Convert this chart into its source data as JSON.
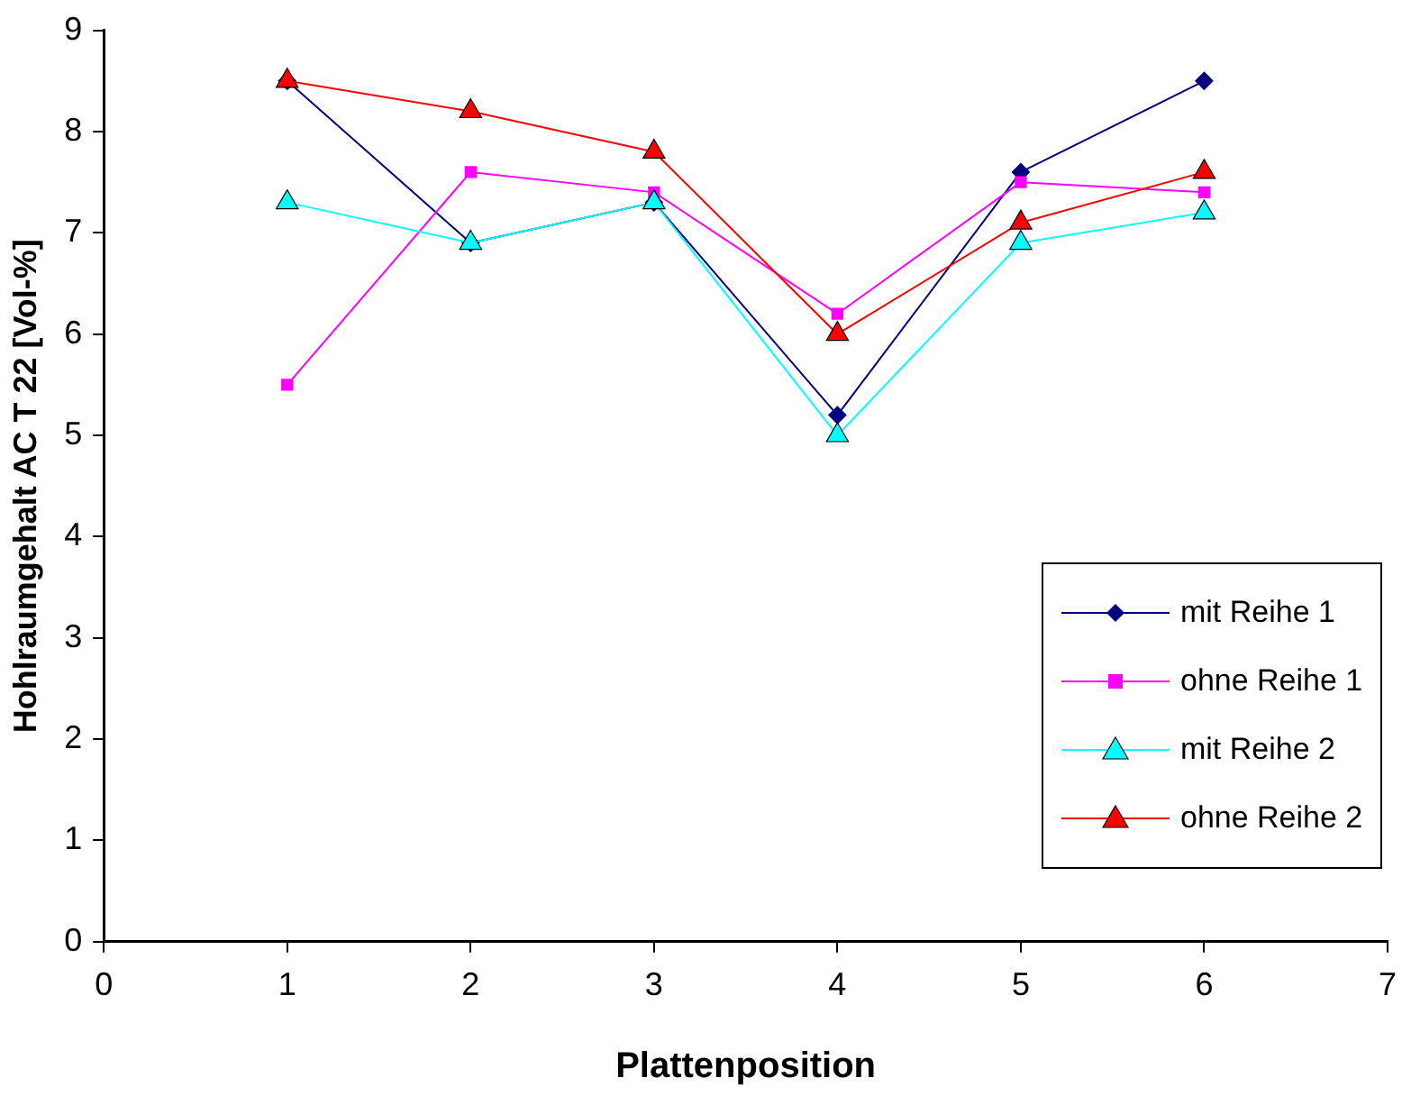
{
  "chart_data": {
    "type": "line",
    "xlabel": "Plattenposition",
    "ylabel": "Hohlraumgehalt AC T 22 [Vol-%]",
    "x": [
      1,
      2,
      3,
      4,
      5,
      6
    ],
    "xlim": [
      0,
      7
    ],
    "xticks": [
      0,
      1,
      2,
      3,
      4,
      5,
      6,
      7
    ],
    "ylim": [
      0,
      9
    ],
    "yticks": [
      0,
      1,
      2,
      3,
      4,
      5,
      6,
      7,
      8,
      9
    ],
    "grid": false,
    "legend": "bottom right",
    "line_style": "solid",
    "series": [
      {
        "name": "mit Reihe 1",
        "color": "#000080",
        "marker": "diamond",
        "values": [
          8.5,
          6.9,
          7.3,
          5.2,
          7.6,
          8.5
        ]
      },
      {
        "name": "ohne Reihe 1",
        "color": "#ff00ff",
        "marker": "square",
        "values": [
          5.5,
          7.6,
          7.4,
          6.2,
          7.5,
          7.4
        ]
      },
      {
        "name": "mit Reihe 2",
        "color": "#00ffff",
        "marker": "triangle",
        "values": [
          7.3,
          6.9,
          7.3,
          5.0,
          6.9,
          7.2
        ]
      },
      {
        "name": "ohne Reihe 2",
        "color": "#ff0000",
        "marker": "triangle",
        "values": [
          8.5,
          8.2,
          7.8,
          6.0,
          7.1,
          7.6
        ]
      }
    ]
  }
}
